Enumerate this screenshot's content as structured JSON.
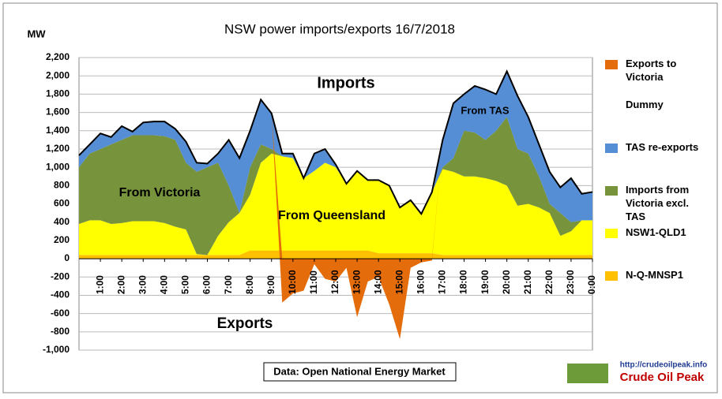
{
  "chart_data": {
    "type": "stacked_area",
    "title": "NSW power imports/exports  16/7/2018",
    "y_axis_label": "MW",
    "annotations": [
      "Imports",
      "Exports",
      "From Victoria",
      "From Queensland",
      "From TAS"
    ],
    "source": "Data: Open National Energy Market",
    "logo": {
      "url": "http://crudeoilpeak.info",
      "name": "Crude Oil Peak"
    },
    "categories": [
      null,
      null,
      "1:00",
      null,
      "2:00",
      null,
      "3:00",
      null,
      "4:00",
      null,
      "5:00",
      null,
      "6:00",
      null,
      "7:00",
      null,
      "8:00",
      null,
      "9:00",
      null,
      "10:00",
      null,
      "11:00",
      null,
      "12:00",
      null,
      "13:00",
      null,
      "14:00",
      null,
      "15:00",
      null,
      "16:00",
      null,
      "17:00",
      null,
      "18:00",
      null,
      "19:00",
      null,
      "20:00",
      null,
      "21:00",
      null,
      "22:00",
      null,
      "23:00",
      null,
      "0:00"
    ],
    "ylim": [
      -1000,
      2200
    ],
    "yticks": [
      {
        "value": -1000,
        "label": "-1,000"
      },
      -800,
      -600,
      -400,
      -200,
      0,
      200,
      400,
      600,
      800,
      {
        "value": 1000,
        "label": "1,000"
      },
      {
        "value": 1200,
        "label": "1,200"
      },
      {
        "value": 1400,
        "label": "1,400"
      },
      {
        "value": 1600,
        "label": "1,600"
      },
      {
        "value": 1800,
        "label": "1,800"
      },
      {
        "value": 2000,
        "label": "2,000"
      },
      {
        "value": 2200,
        "label": "2,200"
      }
    ],
    "grid": true,
    "legend": "right",
    "series": [
      {
        "name": "Exports to Victoria",
        "color": "#e46c0a",
        "values": [
          0,
          0,
          0,
          0,
          0,
          0,
          0,
          0,
          0,
          0,
          0,
          0,
          0,
          0,
          0,
          0,
          0,
          0,
          0,
          -480,
          -380,
          -350,
          -60,
          -220,
          -250,
          -100,
          -640,
          -250,
          -200,
          -500,
          -880,
          -100,
          -40,
          -20,
          0,
          0,
          0,
          0,
          0,
          0,
          0,
          0,
          0,
          0,
          0,
          0,
          0,
          0,
          0
        ]
      },
      {
        "name": "Dummy"
      },
      {
        "name": "TAS re-exports",
        "color": "#558ed5",
        "values": [
          130,
          100,
          170,
          80,
          150,
          40,
          140,
          150,
          160,
          120,
          230,
          100,
          40,
          100,
          500,
          600,
          400,
          490,
          390,
          30,
          50,
          0,
          190,
          150,
          30,
          0,
          10,
          0,
          0,
          0,
          0,
          0,
          0,
          0,
          300,
          600,
          400,
          510,
          550,
          400,
          500,
          580,
          400,
          350,
          350,
          280,
          480,
          290,
          310
        ]
      },
      {
        "name": "Imports from Victoria excl. TAS",
        "color": "#77933c",
        "values": [
          620,
          730,
          780,
          870,
          910,
          940,
          940,
          940,
          950,
          950,
          730,
          900,
          960,
          800,
          400,
          0,
          300,
          200,
          50,
          0,
          0,
          0,
          0,
          0,
          0,
          0,
          0,
          0,
          0,
          0,
          0,
          0,
          0,
          0,
          20,
          150,
          500,
          480,
          420,
          550,
          750,
          620,
          550,
          340,
          100,
          250,
          100,
          0,
          0
        ]
      },
      {
        "name": "NSW1-QLD1",
        "color": "#ffff00",
        "values": [
          340,
          380,
          380,
          340,
          350,
          370,
          370,
          370,
          350,
          310,
          280,
          10,
          0,
          210,
          360,
          460,
          610,
          960,
          1060,
          1030,
          1010,
          790,
          870,
          960,
          910,
          730,
          860,
          770,
          800,
          740,
          500,
          580,
          430,
          670,
          940,
          910,
          860,
          860,
          840,
          810,
          760,
          540,
          560,
          520,
          460,
          210,
          260,
          380,
          380
        ]
      },
      {
        "name": "N-Q-MNSP1",
        "color": "#ffc000",
        "values": [
          40,
          40,
          40,
          40,
          40,
          40,
          40,
          40,
          40,
          40,
          40,
          40,
          40,
          40,
          40,
          40,
          90,
          90,
          90,
          90,
          90,
          90,
          90,
          90,
          90,
          90,
          90,
          90,
          60,
          60,
          60,
          60,
          60,
          60,
          40,
          40,
          40,
          40,
          40,
          40,
          40,
          40,
          40,
          40,
          40,
          40,
          40,
          40,
          40
        ]
      }
    ]
  }
}
